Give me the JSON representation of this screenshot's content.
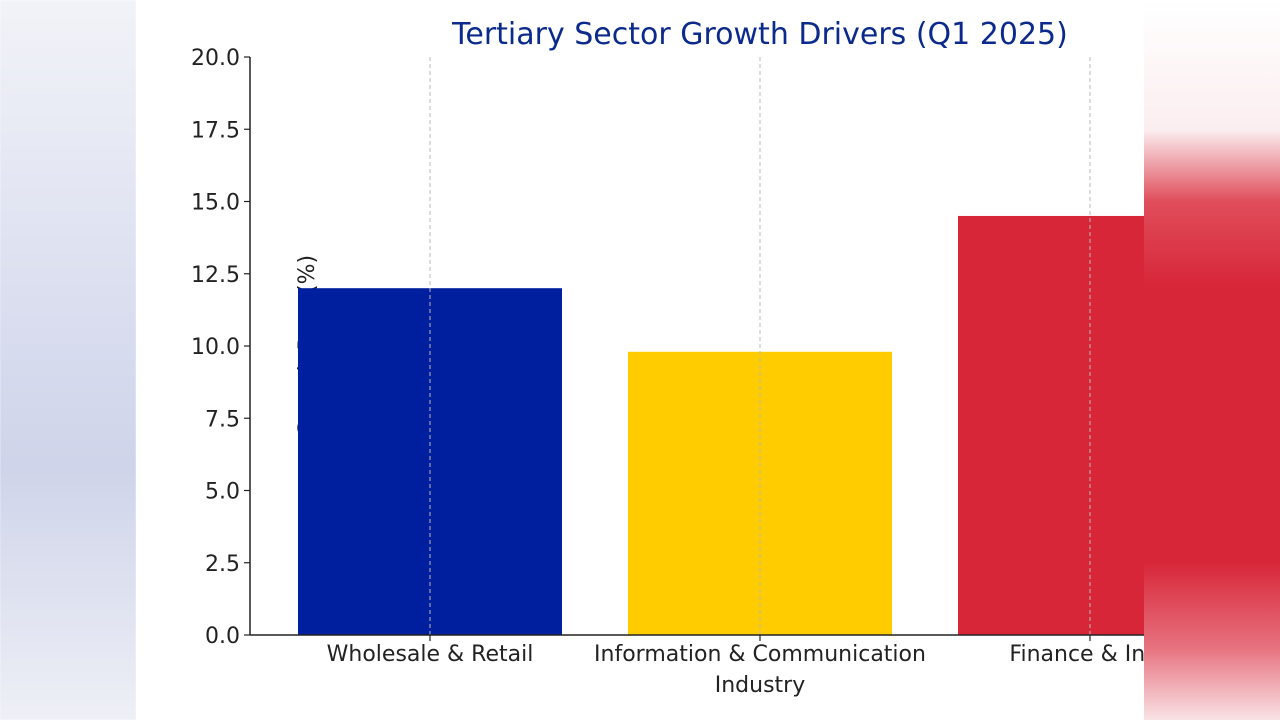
{
  "chart_data": {
    "type": "bar",
    "title": "Tertiary Sector Growth Drivers (Q1 2025)",
    "xlabel": "",
    "ylabel": "Growth Rate (%)",
    "ylim": [
      0,
      20
    ],
    "yticks": [
      "0.0",
      "2.5",
      "5.0",
      "7.5",
      "10.0",
      "12.5",
      "15.0",
      "17.5",
      "20.0"
    ],
    "categories": [
      [
        "Wholesale & Retail"
      ],
      [
        "Information & Communication",
        "Industry"
      ],
      [
        "Finance & Insu"
      ]
    ],
    "values": [
      12.0,
      9.8,
      14.5
    ],
    "colors": [
      "#001f9e",
      "#ffcc00",
      "#d72638"
    ],
    "grid": "vertical dashed"
  }
}
